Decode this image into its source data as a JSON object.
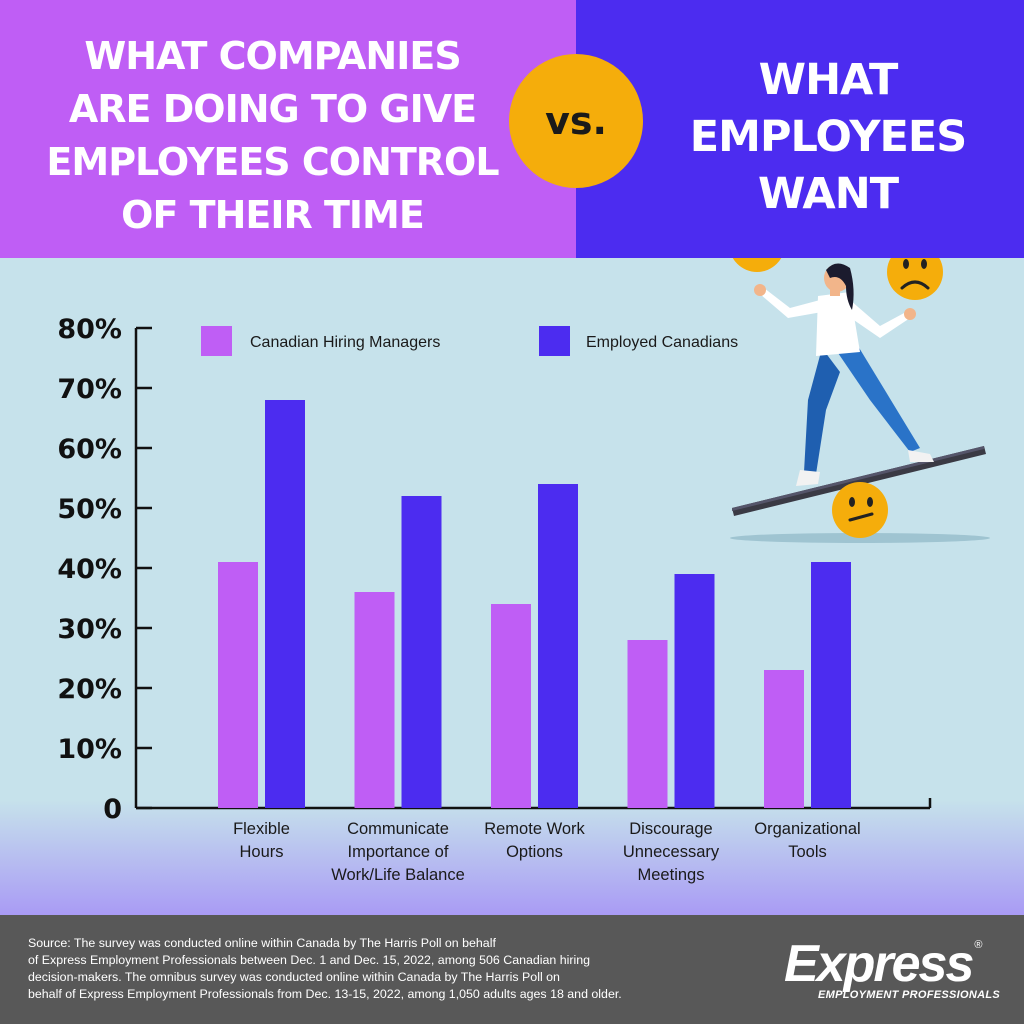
{
  "header": {
    "left_title_lines": [
      "WHAT COMPANIES",
      "ARE DOING TO GIVE",
      "EMPLOYEES CONTROL",
      "OF THEIR TIME"
    ],
    "vs_label": "vs.",
    "right_title_lines": [
      "WHAT",
      "EMPLOYEES",
      "WANT"
    ]
  },
  "colors": {
    "left_header_bg": "#bf5ef5",
    "right_header_bg": "#4c2cf0",
    "vs_badge": "#f5ad0b",
    "chart_bg": "#c6e2eb",
    "footer_bg": "#585858"
  },
  "illustration": {
    "description_icons": [
      "happy-emoji-icon",
      "sad-emoji-icon",
      "neutral-emoji-icon",
      "woman-balancing-icon"
    ]
  },
  "chart_data": {
    "type": "bar",
    "categories": [
      [
        "Flexible",
        "Hours"
      ],
      [
        "Communicate",
        "Importance of",
        "Work/Life Balance"
      ],
      [
        "Remote Work",
        "Options"
      ],
      [
        "Discourage",
        "Unnecessary",
        "Meetings"
      ],
      [
        "Organizational",
        "Tools"
      ]
    ],
    "series": [
      {
        "name": "Canadian Hiring Managers",
        "color": "#bf5ef5",
        "values": [
          41,
          36,
          34,
          28,
          23
        ]
      },
      {
        "name": "Employed Canadians",
        "color": "#4c2cf0",
        "values": [
          68,
          52,
          54,
          39,
          41
        ]
      }
    ],
    "yticks": [
      "0",
      "10%",
      "20%",
      "30%",
      "40%",
      "50%",
      "60%",
      "70%",
      "80%"
    ],
    "ylim": [
      0,
      80
    ],
    "legend_position": "top"
  },
  "footer": {
    "source_lines": [
      "Source: The survey was conducted online within Canada by The Harris Poll on behalf",
      "of Express Employment Professionals between Dec. 1 and Dec. 15, 2022, among 506 Canadian hiring",
      "decision-makers. The omnibus survey was conducted online within Canada by The Harris Poll on",
      "behalf of Express Employment Professionals from Dec. 13-15, 2022, among 1,050 adults ages 18 and older."
    ],
    "logo_word": "Express",
    "logo_reg": "®",
    "logo_sub": "EMPLOYMENT PROFESSIONALS"
  }
}
